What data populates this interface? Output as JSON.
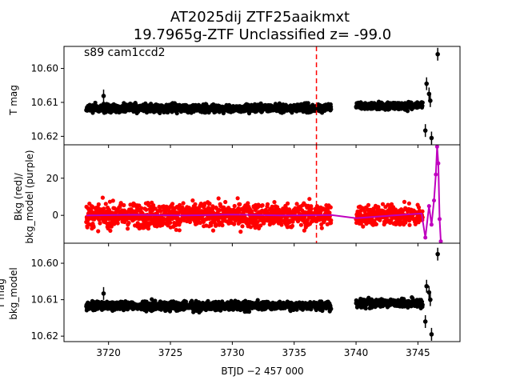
{
  "chart_data": [
    {
      "type": "scatter",
      "title_line1": "AT2025dij  ZTF25aaikmxt",
      "title_line2": "19.7965g-ZTF Unclassified z= -99.0",
      "annotation": "s89 cam1ccd2",
      "ylabel": "T mag",
      "xlim": [
        3716.4,
        3748.4
      ],
      "ylim": [
        10.6225,
        10.5935
      ],
      "y_inverted": true,
      "yticks": [
        10.6,
        10.61,
        10.62
      ],
      "ytick_labels": [
        "10.60",
        "10.61",
        "10.62"
      ],
      "marker_line_x": 3736.8,
      "marker_line_color": "#ff0000",
      "gap": [
        3738.1,
        3739.9
      ],
      "series": [
        {
          "color": "#000000",
          "segments": [
            {
              "x_start": 3718.2,
              "x_end": 3738.0,
              "y_center": 10.6117,
              "y_spread": 0.0012
            },
            {
              "x_start": 3740.0,
              "x_end": 3745.4,
              "y_center": 10.611,
              "y_spread": 0.0012
            }
          ],
          "extra_points": [
            {
              "x": 3719.6,
              "y": 10.6081
            },
            {
              "x": 3745.7,
              "y": 10.6045
            },
            {
              "x": 3745.9,
              "y": 10.6075
            },
            {
              "x": 3745.6,
              "y": 10.6183
            },
            {
              "x": 3746.0,
              "y": 10.6095
            },
            {
              "x": 3746.1,
              "y": 10.6205
            },
            {
              "x": 3746.6,
              "y": 10.5958
            }
          ]
        }
      ]
    },
    {
      "type": "scatter",
      "ylabel_line1": "Bkg (red)/",
      "ylabel_line2": "bkg_model (purple)",
      "xlim": [
        3716.4,
        3748.4
      ],
      "ylim": [
        -15,
        38
      ],
      "yticks": [
        0,
        20
      ],
      "ytick_labels": [
        "0",
        "20"
      ],
      "marker_line_x": 3736.8,
      "marker_line_color": "#ff0000",
      "series": [
        {
          "color": "#ff0000",
          "segments": [
            {
              "x_start": 3718.2,
              "x_end": 3738.0,
              "y_center": 0.0,
              "y_spread": 6.5
            },
            {
              "x_start": 3740.0,
              "x_end": 3745.4,
              "y_center": 0.0,
              "y_spread": 5.5
            }
          ]
        },
        {
          "color": "#bf00bf",
          "points": [
            [
              3718.2,
              0.0
            ],
            [
              3722.0,
              0.3
            ],
            [
              3726.0,
              0.0
            ],
            [
              3730.0,
              0.4
            ],
            [
              3734.0,
              0.0
            ],
            [
              3738.0,
              0.2
            ],
            [
              3740.0,
              -1.5
            ],
            [
              3743.0,
              0.0
            ],
            [
              3745.3,
              1.0
            ],
            [
              3745.6,
              -12.0
            ],
            [
              3745.9,
              5.0
            ],
            [
              3746.1,
              -5.0
            ],
            [
              3746.3,
              8.0
            ],
            [
              3746.45,
              22.0
            ],
            [
              3746.55,
              37.0
            ],
            [
              3746.65,
              28.0
            ],
            [
              3746.75,
              -2.0
            ],
            [
              3746.85,
              -14.0
            ]
          ]
        }
      ]
    },
    {
      "type": "scatter",
      "ylabel_line1": "T mag",
      "ylabel_line2": "bkg_model",
      "xlabel": "BTJD −2 457 000",
      "xlim": [
        3716.4,
        3748.4
      ],
      "ylim": [
        10.6215,
        10.5945
      ],
      "y_inverted": true,
      "yticks": [
        10.6,
        10.61,
        10.62
      ],
      "ytick_labels": [
        "10.60",
        "10.61",
        "10.62"
      ],
      "xticks": [
        3720,
        3725,
        3730,
        3735,
        3740,
        3745
      ],
      "xtick_labels": [
        "3720",
        "3725",
        "3730",
        "3735",
        "3740",
        "3745"
      ],
      "series": [
        {
          "color": "#000000",
          "segments": [
            {
              "x_start": 3718.2,
              "x_end": 3738.0,
              "y_center": 10.6117,
              "y_spread": 0.0012
            },
            {
              "x_start": 3740.0,
              "x_end": 3745.4,
              "y_center": 10.611,
              "y_spread": 0.0012
            }
          ],
          "extra_points": [
            {
              "x": 3719.6,
              "y": 10.6083
            },
            {
              "x": 3745.7,
              "y": 10.6063
            },
            {
              "x": 3745.9,
              "y": 10.608
            },
            {
              "x": 3745.6,
              "y": 10.616
            },
            {
              "x": 3746.0,
              "y": 10.61
            },
            {
              "x": 3746.1,
              "y": 10.6195
            },
            {
              "x": 3746.6,
              "y": 10.5975
            }
          ]
        }
      ]
    }
  ]
}
